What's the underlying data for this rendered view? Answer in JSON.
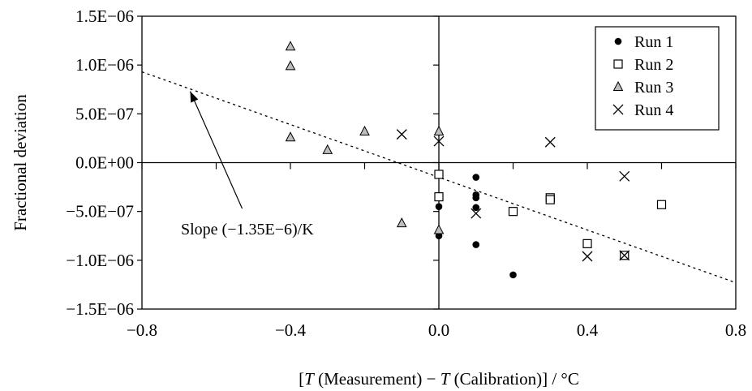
{
  "chart_data": {
    "type": "scatter",
    "xlabel_parts": [
      "[",
      "T",
      " (Measurement) − ",
      "T",
      " (Calibration)] / °C"
    ],
    "ylabel": "Fractional deviation",
    "xlim": [
      -0.8,
      0.8
    ],
    "ylim": [
      -1.5e-06,
      1.5e-06
    ],
    "x_ticks": [
      {
        "value": -0.8,
        "label": "−0.8"
      },
      {
        "value": -0.4,
        "label": "−0.4"
      },
      {
        "value": 0.0,
        "label": "0.0"
      },
      {
        "value": 0.4,
        "label": "0.4"
      },
      {
        "value": 0.8,
        "label": "0.8"
      }
    ],
    "y_ticks": [
      {
        "value": 1.5e-06,
        "label": "1.5E−06"
      },
      {
        "value": 1e-06,
        "label": "1.0E−06"
      },
      {
        "value": 5e-07,
        "label": "5.0E−07"
      },
      {
        "value": 0.0,
        "label": "0.0E+00"
      },
      {
        "value": -5e-07,
        "label": "−5.0E−07"
      },
      {
        "value": -1e-06,
        "label": "−1.0E−06"
      },
      {
        "value": -1.5e-06,
        "label": "−1.5E−06"
      }
    ],
    "legend_position": "top-right",
    "series": [
      {
        "name": "Run 1",
        "marker": "circle",
        "points": [
          [
            0.0,
            -4.5e-07
          ],
          [
            0.0,
            -7.5e-07
          ],
          [
            0.1,
            -1.5e-07
          ],
          [
            0.1,
            -3.3e-07
          ],
          [
            0.1,
            -3.6e-07
          ],
          [
            0.1,
            -4.6e-07
          ],
          [
            0.1,
            -8.4e-07
          ],
          [
            0.2,
            -1.15e-06
          ]
        ]
      },
      {
        "name": "Run 2",
        "marker": "square",
        "points": [
          [
            0.0,
            -1.2e-07
          ],
          [
            0.0,
            -3.5e-07
          ],
          [
            0.2,
            -5e-07
          ],
          [
            0.3,
            -3.6e-07
          ],
          [
            0.3,
            -3.8e-07
          ],
          [
            0.4,
            -8.3e-07
          ],
          [
            0.5,
            -9.5e-07
          ],
          [
            0.6,
            -4.3e-07
          ]
        ]
      },
      {
        "name": "Run 3",
        "marker": "triangle",
        "points": [
          [
            -0.4,
            1.19e-06
          ],
          [
            -0.4,
            9.9e-07
          ],
          [
            -0.4,
            2.6e-07
          ],
          [
            -0.3,
            1.3e-07
          ],
          [
            -0.2,
            3.2e-07
          ],
          [
            -0.1,
            -6.2e-07
          ],
          [
            0.0,
            3.2e-07
          ],
          [
            0.0,
            -6.9e-07
          ]
        ]
      },
      {
        "name": "Run 4",
        "marker": "x",
        "points": [
          [
            -0.1,
            2.9e-07
          ],
          [
            0.0,
            2.2e-07
          ],
          [
            0.1,
            -5.2e-07
          ],
          [
            0.3,
            2.1e-07
          ],
          [
            0.4,
            -9.6e-07
          ],
          [
            0.5,
            -1.4e-07
          ],
          [
            0.5,
            -9.5e-07
          ]
        ]
      }
    ],
    "trend_line": {
      "style": "dotted",
      "from": [
        -0.8,
        9.3e-07
      ],
      "to": [
        0.8,
        -1.23e-06
      ]
    },
    "annotation": {
      "text": "Slope (−1.35E−6)/K",
      "arrow_to": [
        -0.67,
        7.3e-07
      ],
      "arrow_from": [
        -0.53,
        -4.7e-07
      ]
    }
  }
}
